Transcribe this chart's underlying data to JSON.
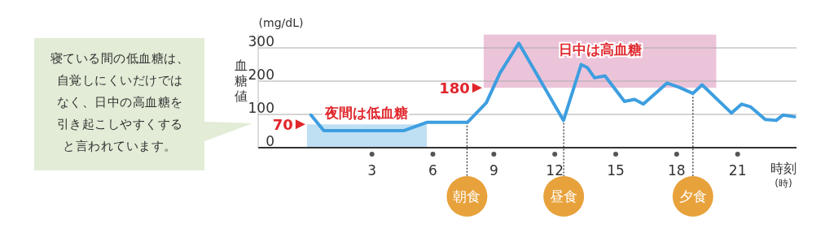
{
  "chart_data": {
    "type": "line",
    "ylabel": "血糖値",
    "xlabel": "時刻\n(時)",
    "x": [
      0,
      0.63,
      4.56,
      5.7,
      7.7,
      8.63,
      9.3,
      10.23,
      12.43,
      13.3,
      13.6,
      13.96,
      14.47,
      15.43,
      15.93,
      16.36,
      17.52,
      18.1,
      18.8,
      19.25,
      20.7,
      21.2,
      21.63,
      22.36,
      22.9,
      23.23,
      23.8
    ],
    "values": [
      98,
      51,
      51,
      76,
      76,
      135,
      224,
      314,
      82,
      250,
      241,
      210,
      216,
      139,
      145,
      131,
      194,
      182,
      163,
      189,
      104,
      131,
      123,
      85,
      82,
      98,
      93
    ],
    "color": "#3d9ee0",
    "xlim": [
      -2.6,
      23.9
    ],
    "xticks": [
      3,
      6,
      9,
      12,
      15,
      18,
      21
    ],
    "ylim": [
      0,
      340
    ],
    "yticks": [
      0,
      100,
      200,
      300
    ],
    "grid": "y",
    "ref_lines": [
      {
        "axis": "x",
        "value": 7.68,
        "label": "朝食",
        "color": "#333333",
        "line_style": "dotted"
      },
      {
        "axis": "x",
        "value": 12.44,
        "label": "昼食",
        "color": "#333333",
        "line_style": "dotted"
      },
      {
        "axis": "x",
        "value": 18.8,
        "label": "夕食",
        "color": "#333333",
        "line_style": "dotted"
      }
    ],
    "bands": [
      {
        "axis": "x",
        "from": -0.2,
        "to": 5.7,
        "label": "夜間は低血糖",
        "color": "#bfdff3"
      },
      {
        "axis": "x",
        "from": 8.5,
        "to": 19.95,
        "label": "日中は高血糖",
        "color": "#ecc4d9"
      }
    ],
    "annotations": [
      {
        "text": "70",
        "x": -0.2,
        "y": 70
      },
      {
        "text": "180",
        "x": 8.5,
        "y": 180
      },
      "(mg/dL)",
      "寝ている間の低血糖は、自覚しにくいだけではなく、日中の高血糖を引き起こしやすくすると言われています。"
    ]
  }
}
